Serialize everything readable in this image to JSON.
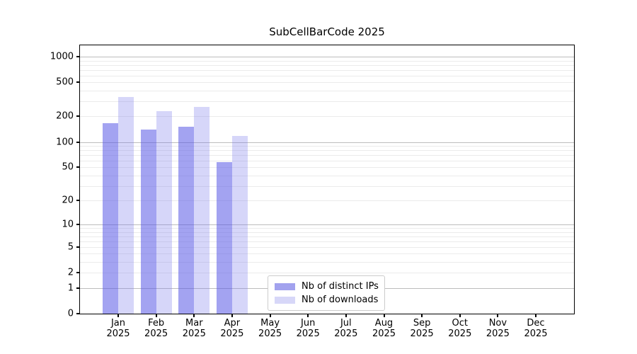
{
  "title": "SubCellBarCode 2025",
  "chart_data": {
    "type": "bar",
    "scale": "log1p",
    "title": "SubCellBarCode 2025",
    "xlabel": "",
    "ylabel": "",
    "year": "2025",
    "months": [
      "Jan",
      "Feb",
      "Mar",
      "Apr",
      "May",
      "Jun",
      "Jul",
      "Aug",
      "Sep",
      "Oct",
      "Nov",
      "Dec"
    ],
    "categories": [
      "Jan 2025",
      "Feb 2025",
      "Mar 2025",
      "Apr 2025",
      "May 2025",
      "Jun 2025",
      "Jul 2025",
      "Aug 2025",
      "Sep 2025",
      "Oct 2025",
      "Nov 2025",
      "Dec 2025"
    ],
    "series": [
      {
        "name": "Nb of distinct IPs",
        "legend_color": "#a2a2ee",
        "bar_rgba": "rgba(88,88,230,0.55)",
        "values": [
          165,
          140,
          150,
          58,
          null,
          null,
          null,
          null,
          null,
          null,
          null,
          null
        ]
      },
      {
        "name": "Nb of downloads",
        "legend_color": "#d7d7f8",
        "bar_rgba": "rgba(120,120,235,0.30)",
        "values": [
          335,
          230,
          260,
          118,
          null,
          null,
          null,
          null,
          null,
          null,
          null,
          null
        ]
      }
    ],
    "yticks": [
      0,
      1,
      2,
      5,
      10,
      20,
      50,
      100,
      200,
      500,
      1000
    ],
    "ylim": [
      0,
      1000
    ],
    "grid": "on",
    "legend_position": "lower-center"
  }
}
